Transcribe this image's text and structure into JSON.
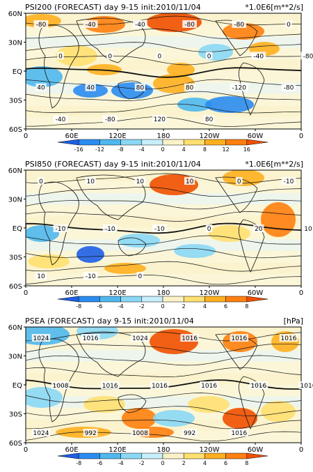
{
  "colors": {
    "scale": [
      "#1e5fe6",
      "#2a8cf0",
      "#4fb8ee",
      "#8ad8f5",
      "#c8eefb",
      "#fbf2c8",
      "#ffe070",
      "#ffb020",
      "#ff8010",
      "#f05000"
    ]
  },
  "chart_data": [
    {
      "type": "heatmap",
      "title": "PSI200 (FORECAST) day 9-15 init:2010/11/04",
      "units": "*1.0E6[m**2/s]",
      "ytick_labels": [
        "60N",
        "30N",
        "EQ",
        "30S",
        "60S"
      ],
      "xtick_labels": [
        "0",
        "60E",
        "120E",
        "180",
        "120W",
        "60W",
        "0"
      ],
      "colorbar_levels": [
        "-16",
        "-12",
        "-8",
        "-4",
        "0",
        "4",
        "8",
        "12",
        "16"
      ],
      "contour_labels": [
        "-80",
        "-40",
        "-40",
        "-80",
        "-80",
        "0",
        "0",
        "0",
        "0",
        "0",
        "-40",
        "-80",
        "40",
        "40",
        "80",
        "80",
        "-120",
        "-80",
        "-40",
        "-80",
        "120",
        "80"
      ]
    },
    {
      "type": "heatmap",
      "title": "PSI850 (FORECAST) day 9-15 init:2010/11/04",
      "units": "*1.0E6[m**2/s]",
      "ytick_labels": [
        "60N",
        "30N",
        "EQ",
        "30S",
        "60S"
      ],
      "xtick_labels": [
        "0",
        "60E",
        "120E",
        "180",
        "120W",
        "60W",
        "0"
      ],
      "colorbar_levels": [
        "-8",
        "-6",
        "-4",
        "-2",
        "0",
        "2",
        "4",
        "6",
        "8"
      ],
      "contour_labels": [
        "0",
        "10",
        "10",
        "10",
        "0",
        "-10",
        "-10",
        "-10",
        "-10",
        "0",
        "20",
        "10",
        "10",
        "-10",
        "0"
      ]
    },
    {
      "type": "heatmap",
      "title": "PSEA (FORECAST) day 9-15 init:2010/11/04",
      "units": "[hPa]",
      "ytick_labels": [
        "60N",
        "30N",
        "EQ",
        "30S",
        "60S"
      ],
      "xtick_labels": [
        "0",
        "60E",
        "120E",
        "180",
        "120W",
        "60W",
        "0"
      ],
      "colorbar_levels": [
        "-8",
        "-6",
        "-4",
        "-2",
        "0",
        "2",
        "4",
        "6",
        "8"
      ],
      "contour_labels": [
        "1024",
        "1016",
        "1024",
        "1016",
        "1016",
        "1016",
        "1008",
        "1016",
        "1016",
        "1016",
        "1016",
        "1016",
        "1024",
        "992",
        "1008",
        "992",
        "1016"
      ]
    }
  ]
}
